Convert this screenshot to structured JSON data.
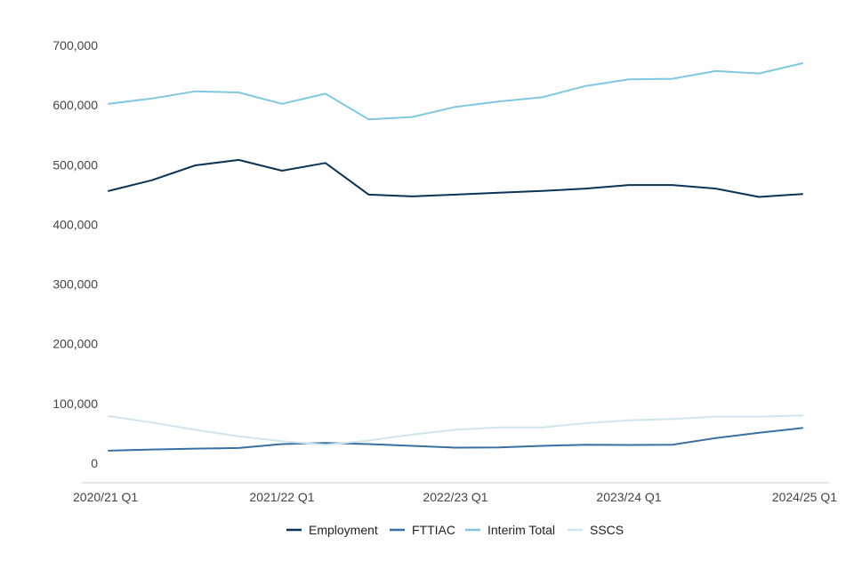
{
  "chart_data": {
    "type": "line",
    "title": "",
    "xlabel": "",
    "ylabel": "",
    "ylim": [
      0,
      700000
    ],
    "y_ticks": [
      0,
      100000,
      200000,
      300000,
      400000,
      500000,
      600000,
      700000
    ],
    "y_tick_labels": [
      "0",
      "100,000",
      "200,000",
      "300,000",
      "400,000",
      "500,000",
      "600,000",
      "700,000"
    ],
    "x": [
      "2020/21 Q1",
      "2020/21 Q2",
      "2020/21 Q3",
      "2020/21 Q4",
      "2021/22 Q1",
      "2021/22 Q2",
      "2021/22 Q3",
      "2021/22 Q4",
      "2022/23 Q1",
      "2022/23 Q2",
      "2022/23 Q3",
      "2022/23 Q4",
      "2023/24 Q1",
      "2023/24 Q2",
      "2023/24 Q3",
      "2023/24 Q4",
      "2024/25 Q1"
    ],
    "x_tick_labels": [
      "2020/21 Q1",
      "2021/22 Q1",
      "2022/23 Q1",
      "2023/24 Q1",
      "2024/25 Q1"
    ],
    "grid": false,
    "legend_position": "bottom",
    "series": [
      {
        "name": "Employment",
        "color": "#0b3356",
        "values": [
          456000,
          474000,
          499000,
          508000,
          490000,
          503000,
          450000,
          447000,
          450000,
          453000,
          456000,
          460000,
          466000,
          466000,
          460000,
          446000,
          451000
        ]
      },
      {
        "name": "FTTIAC",
        "color": "#3a6fa3",
        "values": [
          21000,
          23000,
          24500,
          25500,
          32000,
          34000,
          32000,
          29000,
          26000,
          26500,
          29000,
          31000,
          30500,
          31000,
          42000,
          51000,
          59000
        ]
      },
      {
        "name": "Interim Total",
        "color": "#7ec8e0",
        "values": [
          602000,
          611000,
          623000,
          621000,
          602000,
          619000,
          576000,
          580000,
          597000,
          606000,
          613000,
          632000,
          643000,
          644000,
          657000,
          653000,
          670000
        ]
      },
      {
        "name": "SSCS",
        "color": "#cfe5ee",
        "values": [
          79000,
          68000,
          56000,
          45000,
          37000,
          31000,
          38000,
          48000,
          56000,
          60000,
          60000,
          67000,
          72000,
          74000,
          78000,
          78000,
          80000
        ]
      }
    ]
  }
}
